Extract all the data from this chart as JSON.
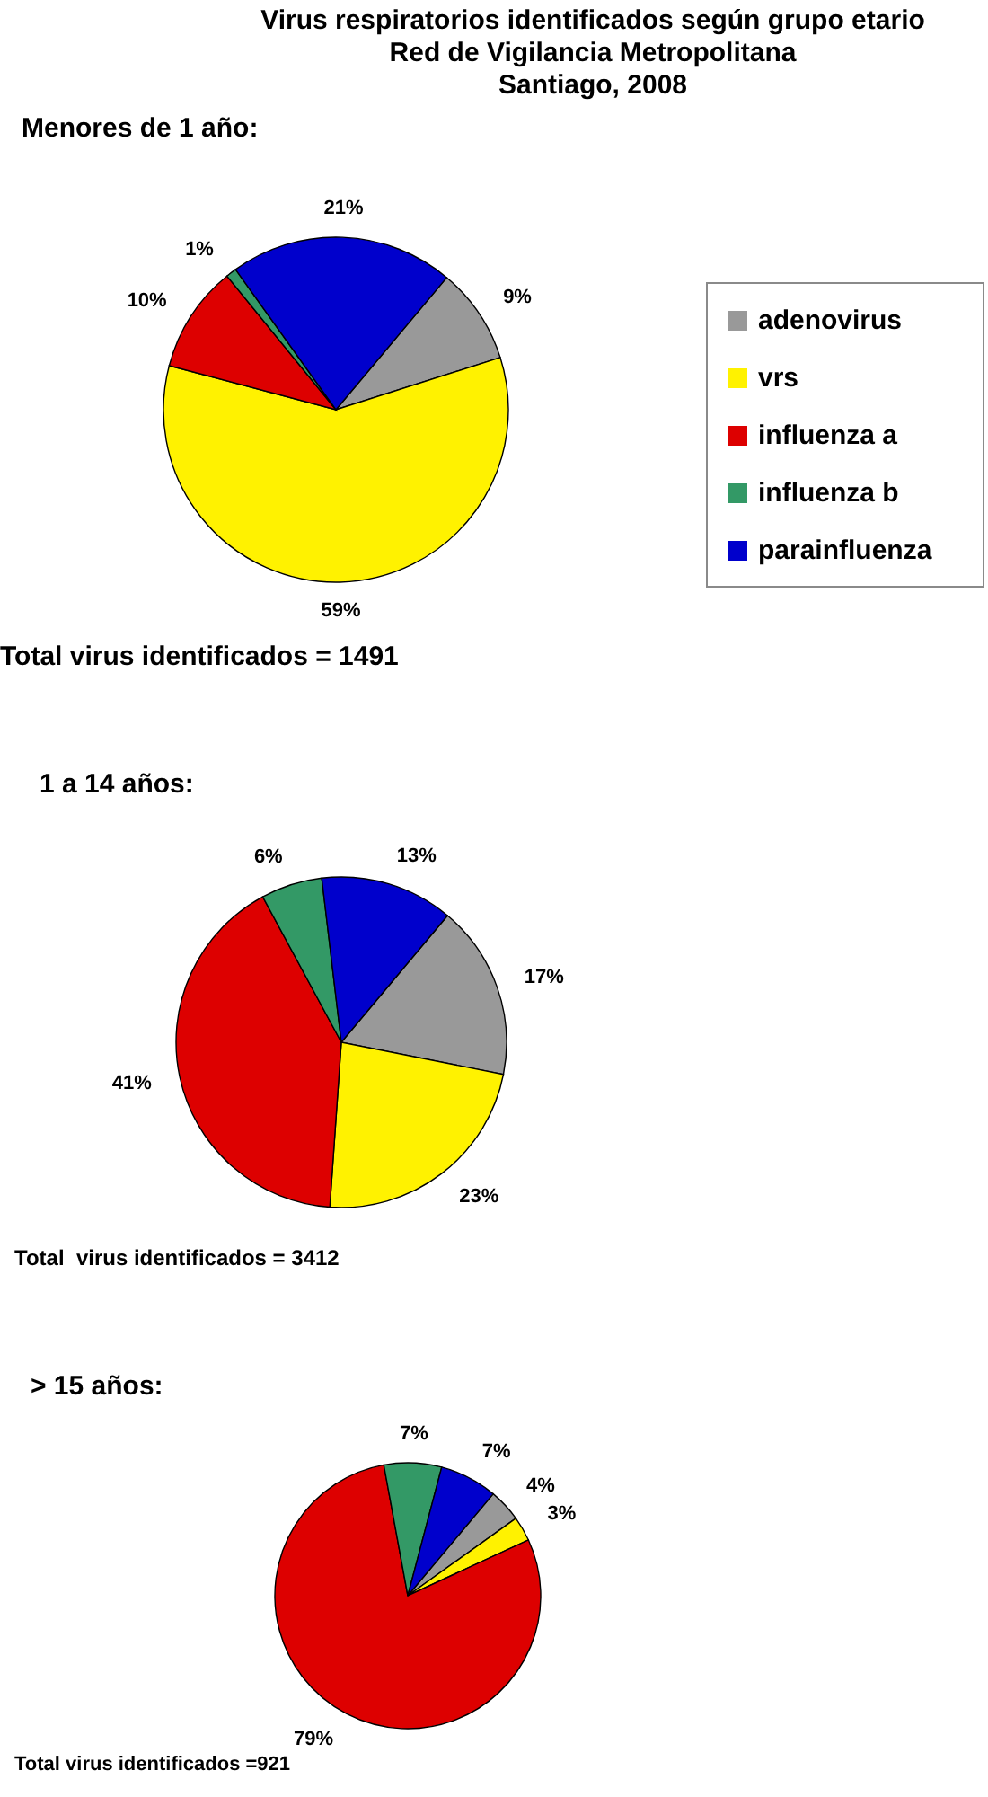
{
  "chart_data": [
    {
      "type": "pie",
      "title": "Virus respiratorios identificados según grupo etario\nRed de Vigilancia Metropolitana\nSantiago, 2008",
      "subtitle": "Menores de 1 año:",
      "categories": [
        "adenovirus",
        "vrs",
        "influenza a",
        "influenza b",
        "parainfluenza"
      ],
      "values": [
        9,
        59,
        10,
        1,
        21
      ],
      "value_labels": [
        "9%",
        "59%",
        "10%",
        "1%",
        "21%"
      ],
      "colors": [
        "#999999",
        "#fff200",
        "#dd0000",
        "#339966",
        "#0000cc"
      ],
      "legend": "right",
      "annotations": [
        "Total virus identificados = 1491"
      ]
    },
    {
      "type": "pie",
      "title": "1 a 14 años:",
      "categories": [
        null,
        null,
        null,
        null,
        null
      ],
      "values": [
        17,
        23,
        41,
        6,
        13
      ],
      "value_labels": [
        "17%",
        "23%",
        "41%",
        "6%",
        "13%"
      ],
      "colors": [
        "#999999",
        "#fff200",
        "#dd0000",
        "#339966",
        "#0000cc"
      ],
      "annotations": [
        "Total  virus identificados = 3412"
      ]
    },
    {
      "type": "pie",
      "title": "> 15 años:",
      "categories": [
        null,
        null,
        null,
        null,
        null
      ],
      "values": [
        4,
        3,
        79,
        7,
        7
      ],
      "value_labels": [
        "4%",
        "3%",
        "79%",
        "7%",
        "7%"
      ],
      "colors": [
        "#999999",
        "#fff200",
        "#dd0000",
        "#339966",
        "#0000cc"
      ],
      "annotations": [
        "Total virus identificados =921"
      ]
    }
  ]
}
